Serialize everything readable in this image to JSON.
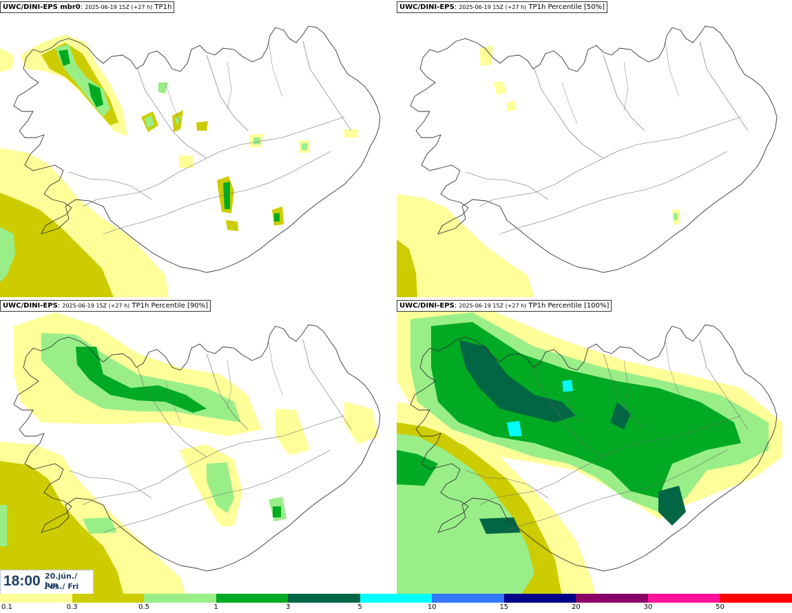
{
  "panels": [
    {
      "model": "UWC/DINI-EPS mbr0",
      "run": "2025-06-19 15Z (+27 h)",
      "field": "TP1h"
    },
    {
      "model": "UWC/DINI-EPS",
      "run": "2025-06-19 15Z (+27 h)",
      "field": "TP1h Percentile [50%]"
    },
    {
      "model": "UWC/DINI-EPS",
      "run": "2025-06-19 15Z (+27 h)",
      "field": "TP1h Percentile [90%]"
    },
    {
      "model": "UWC/DINI-EPS",
      "run": "2025-06-19 15Z (+27 h)",
      "field": "TP1h Percentile [100%]"
    }
  ],
  "time": {
    "clock": "18:00",
    "date_line1": "20.jún./ Jun",
    "date_line2": "Fös./ Fri"
  },
  "colorbar": {
    "labels": [
      "0.1",
      "0.3",
      "0.5",
      "1",
      "3",
      "5",
      "10",
      "15",
      "20",
      "30",
      "50"
    ],
    "colors": [
      "#ffff99",
      "#cccc00",
      "#99ee88",
      "#00aa22",
      "#006644",
      "#00ffff",
      "#3377ff",
      "#000088",
      "#880066",
      "#ff1199",
      "#ff0000"
    ]
  }
}
